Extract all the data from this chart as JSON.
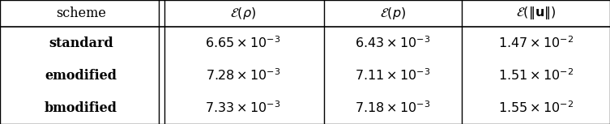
{
  "row_labels": [
    "standard",
    "emodified",
    "bmodified"
  ],
  "data_cells": [
    [
      "$6.65 \\times 10^{-3}$",
      "$6.43 \\times 10^{-3}$",
      "$1.47 \\times 10^{-2}$"
    ],
    [
      "$7.28 \\times 10^{-3}$",
      "$7.11 \\times 10^{-3}$",
      "$1.51 \\times 10^{-2}$"
    ],
    [
      "$7.33 \\times 10^{-3}$",
      "$7.18 \\times 10^{-3}$",
      "$1.55 \\times 10^{-2}$"
    ]
  ],
  "background_color": "#ffffff",
  "text_color": "#000000",
  "fig_width": 7.53,
  "fig_height": 1.53,
  "dpi": 100,
  "font_size": 11.5
}
